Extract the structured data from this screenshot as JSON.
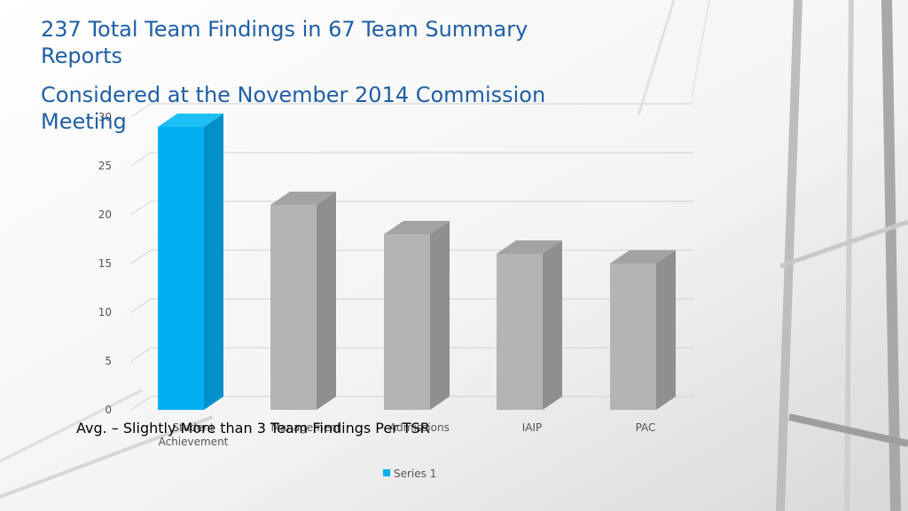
{
  "slide": {
    "title_line1": "237 Total Team Findings in 67 Team Summary Reports",
    "title_line2": "Considered at the November 2014 Commission Meeting",
    "note": "Avg. – Slightly More than 3 Team Findings Per TSR"
  },
  "colors": {
    "title": "#1f5fa6",
    "highlight_bar": "#00b0f0",
    "default_bar": "#b4b4b4",
    "gridline": "#d0d0d0"
  },
  "chart_data": {
    "type": "bar",
    "categories": [
      [
        "Student",
        "Achievement"
      ],
      [
        "Management"
      ],
      [
        "Admissions"
      ],
      [
        "IAIP"
      ],
      [
        "PAC"
      ]
    ],
    "series": [
      {
        "name": "Series 1",
        "values": [
          29,
          21,
          18,
          16,
          15
        ]
      }
    ],
    "highlight_index": 0,
    "ylim": [
      0,
      30
    ],
    "yticks": [
      0,
      5,
      10,
      15,
      20,
      25,
      30
    ],
    "grid": true,
    "legend": "bottom",
    "three_d": true
  }
}
